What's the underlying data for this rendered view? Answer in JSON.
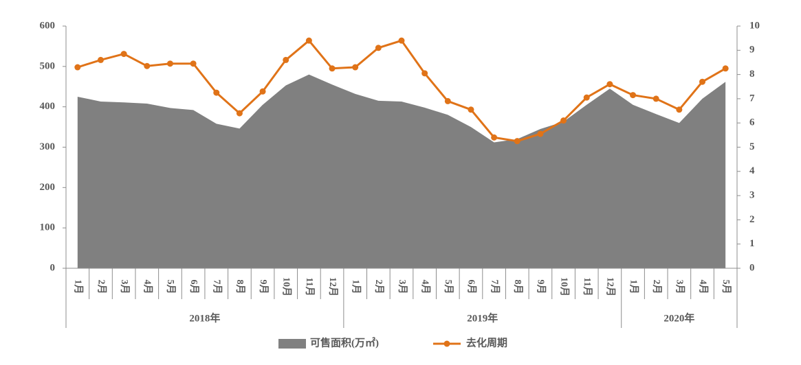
{
  "chart_data": {
    "type": "combo",
    "category_groups": [
      {
        "label": "2018年",
        "categories": [
          "1月",
          "2月",
          "3月",
          "4月",
          "5月",
          "6月",
          "7月",
          "8月",
          "9月",
          "10月",
          "11月",
          "12月"
        ]
      },
      {
        "label": "2019年",
        "categories": [
          "1月",
          "2月",
          "3月",
          "4月",
          "5月",
          "6月",
          "7月",
          "8月",
          "9月",
          "10月",
          "11月",
          "12月"
        ]
      },
      {
        "label": "2020年",
        "categories": [
          "1月",
          "2月",
          "3月",
          "4月",
          "5月"
        ]
      }
    ],
    "series": [
      {
        "name": "可售面积(万㎡)",
        "type": "area",
        "color": "#808080",
        "values": [
          425,
          413,
          411,
          408,
          397,
          392,
          358,
          346,
          405,
          453,
          480,
          455,
          432,
          415,
          413,
          398,
          380,
          350,
          312,
          320,
          345,
          363,
          405,
          445,
          405,
          382,
          360,
          420,
          462
        ]
      },
      {
        "name": "去化周期",
        "type": "line",
        "axis": "y2",
        "color": "#e07318",
        "values": [
          8.3,
          8.6,
          8.85,
          8.35,
          8.45,
          8.45,
          7.25,
          6.4,
          7.3,
          8.6,
          9.4,
          8.25,
          8.3,
          9.1,
          9.4,
          8.05,
          6.9,
          6.55,
          5.4,
          5.25,
          5.55,
          6.1,
          7.05,
          7.6,
          7.15,
          7.0,
          6.55,
          7.7,
          8.25
        ]
      }
    ],
    "ylim": [
      0,
      600
    ],
    "yticks": [
      0,
      100,
      200,
      300,
      400,
      500,
      600
    ],
    "y2lim": [
      0,
      10
    ],
    "y2ticks": [
      0,
      1,
      2,
      3,
      4,
      5,
      6,
      7,
      8,
      9,
      10
    ]
  }
}
